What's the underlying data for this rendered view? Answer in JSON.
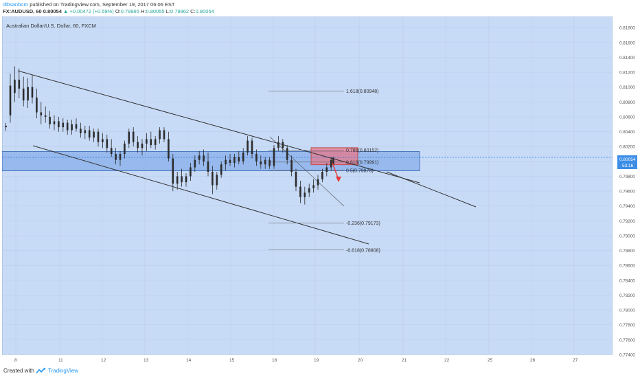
{
  "header": {
    "author": "dlbsanborn",
    "published": " published on TradingView.com, September 19, 2017 06:06 EST",
    "symbol": "FX:AUDUSD, 60",
    "last": "0.80054",
    "change": "▲ +0.00472 (+0.59%)",
    "ohlc": {
      "o_label": "O:",
      "o": "0.79965",
      "h_label": "H:",
      "h": "0.80055",
      "l_label": "L:",
      "l": "0.79962",
      "c_label": "C:",
      "c": "0.80054"
    }
  },
  "footer": {
    "created": "Created with",
    "brand": "TradingView",
    "brand_icon": "tradingview-logo-icon"
  },
  "colors": {
    "plot_bg": "#c7daf6",
    "candle": "#2b2b2b",
    "zone_blue": "#6f9ee6",
    "zone_red": "#e6788a",
    "arrow": "#e53935",
    "current_price_bg": "#3d8ee6"
  },
  "chart_data": {
    "type": "candlestick",
    "title": "Australian Dollar/U.S. Dollar, 60, FXCM",
    "x_ticks": [
      "8",
      "11",
      "12",
      "13",
      "14",
      "15",
      "18",
      "19",
      "20",
      "21",
      "22",
      "25",
      "26",
      "27"
    ],
    "y_ticks": [
      "0.81800",
      "0.81600",
      "0.81400",
      "0.81200",
      "0.81000",
      "0.80800",
      "0.80600",
      "0.80400",
      "0.80200",
      "0.80000",
      "0.79800",
      "0.79600",
      "0.79400",
      "0.79200",
      "0.79000",
      "0.78800",
      "0.78600",
      "0.78400",
      "0.78200",
      "0.78000",
      "0.77800",
      "0.77600",
      "0.77400"
    ],
    "ylim": [
      0.774,
      0.8195
    ],
    "current_price": "0.80054",
    "countdown": "53:16",
    "fib_levels": [
      {
        "label": "1.618(0.80948)",
        "value": 0.80948
      },
      {
        "label": "0.786(0.80152)",
        "value": 0.80152
      },
      {
        "label": "0.618(0.79991)",
        "value": 0.79991
      },
      {
        "label": "0.5(0.79878)",
        "value": 0.79878
      },
      {
        "label": "-0.236(0.79173)",
        "value": 0.79173
      },
      {
        "label": "-0.618(0.78808)",
        "value": 0.78808
      }
    ],
    "zones": [
      {
        "name": "support-resistance-zone",
        "top": 0.80132,
        "bottom": 0.79873
      },
      {
        "name": "sell-zone",
        "top": 0.80185,
        "bottom": 0.79955
      }
    ],
    "candles": [
      {
        "t": 0.5,
        "o": 0.8046,
        "h": 0.8052,
        "l": 0.8041,
        "c": 0.8048
      },
      {
        "t": 2.5,
        "o": 0.8062,
        "h": 0.8118,
        "l": 0.8052,
        "c": 0.8102
      },
      {
        "t": 4.5,
        "o": 0.8092,
        "h": 0.8128,
        "l": 0.808,
        "c": 0.811
      },
      {
        "t": 6.5,
        "o": 0.811,
        "h": 0.8125,
        "l": 0.8085,
        "c": 0.8098
      },
      {
        "t": 8.5,
        "o": 0.8098,
        "h": 0.8114,
        "l": 0.8074,
        "c": 0.8082
      },
      {
        "t": 10.5,
        "o": 0.8082,
        "h": 0.8112,
        "l": 0.8072,
        "c": 0.81
      },
      {
        "t": 12.5,
        "o": 0.81,
        "h": 0.8116,
        "l": 0.8078,
        "c": 0.8086
      },
      {
        "t": 14.5,
        "o": 0.8086,
        "h": 0.8098,
        "l": 0.8058,
        "c": 0.8066
      },
      {
        "t": 16.5,
        "o": 0.8066,
        "h": 0.808,
        "l": 0.805,
        "c": 0.8062
      },
      {
        "t": 18.5,
        "o": 0.8062,
        "h": 0.8074,
        "l": 0.8052,
        "c": 0.806
      },
      {
        "t": 20.5,
        "o": 0.806,
        "h": 0.8068,
        "l": 0.8044,
        "c": 0.805
      },
      {
        "t": 22.5,
        "o": 0.805,
        "h": 0.8062,
        "l": 0.8042,
        "c": 0.8054
      },
      {
        "t": 24.5,
        "o": 0.8054,
        "h": 0.806,
        "l": 0.804,
        "c": 0.8046
      },
      {
        "t": 26.5,
        "o": 0.8046,
        "h": 0.8058,
        "l": 0.804,
        "c": 0.8052
      },
      {
        "t": 28.5,
        "o": 0.8052,
        "h": 0.8056,
        "l": 0.8036,
        "c": 0.8042
      },
      {
        "t": 30.5,
        "o": 0.8042,
        "h": 0.8056,
        "l": 0.8036,
        "c": 0.805
      },
      {
        "t": 32.5,
        "o": 0.805,
        "h": 0.8058,
        "l": 0.804,
        "c": 0.8044
      },
      {
        "t": 34.5,
        "o": 0.8044,
        "h": 0.8052,
        "l": 0.8032,
        "c": 0.8038
      },
      {
        "t": 36.5,
        "o": 0.8038,
        "h": 0.8048,
        "l": 0.803,
        "c": 0.8042
      },
      {
        "t": 38.5,
        "o": 0.8042,
        "h": 0.8048,
        "l": 0.8028,
        "c": 0.8032
      },
      {
        "t": 40.5,
        "o": 0.8032,
        "h": 0.8044,
        "l": 0.8026,
        "c": 0.804
      },
      {
        "t": 42.5,
        "o": 0.804,
        "h": 0.8044,
        "l": 0.802,
        "c": 0.8026
      },
      {
        "t": 44.5,
        "o": 0.8026,
        "h": 0.8038,
        "l": 0.8018,
        "c": 0.803
      },
      {
        "t": 46.5,
        "o": 0.803,
        "h": 0.8036,
        "l": 0.8012,
        "c": 0.8018
      },
      {
        "t": 48.5,
        "o": 0.8018,
        "h": 0.803,
        "l": 0.8006,
        "c": 0.801
      },
      {
        "t": 50.5,
        "o": 0.801,
        "h": 0.8018,
        "l": 0.7996,
        "c": 0.8002
      },
      {
        "t": 52.5,
        "o": 0.8002,
        "h": 0.8014,
        "l": 0.7994,
        "c": 0.801
      },
      {
        "t": 54.5,
        "o": 0.801,
        "h": 0.8028,
        "l": 0.8004,
        "c": 0.8024
      },
      {
        "t": 56.5,
        "o": 0.8024,
        "h": 0.8044,
        "l": 0.8018,
        "c": 0.804
      },
      {
        "t": 58.5,
        "o": 0.804,
        "h": 0.8046,
        "l": 0.802,
        "c": 0.8026
      },
      {
        "t": 60.5,
        "o": 0.8026,
        "h": 0.8034,
        "l": 0.8012,
        "c": 0.8018
      },
      {
        "t": 62.5,
        "o": 0.8018,
        "h": 0.803,
        "l": 0.8008,
        "c": 0.8024
      },
      {
        "t": 64.5,
        "o": 0.8024,
        "h": 0.8038,
        "l": 0.8014,
        "c": 0.803
      },
      {
        "t": 66.5,
        "o": 0.803,
        "h": 0.804,
        "l": 0.8018,
        "c": 0.8022
      },
      {
        "t": 68.5,
        "o": 0.8022,
        "h": 0.8034,
        "l": 0.8016,
        "c": 0.803
      },
      {
        "t": 70.5,
        "o": 0.803,
        "h": 0.8046,
        "l": 0.8024,
        "c": 0.8042
      },
      {
        "t": 72.5,
        "o": 0.8042,
        "h": 0.8046,
        "l": 0.8026,
        "c": 0.803
      },
      {
        "t": 74.5,
        "o": 0.803,
        "h": 0.804,
        "l": 0.8,
        "c": 0.8004
      },
      {
        "t": 76.5,
        "o": 0.8004,
        "h": 0.801,
        "l": 0.796,
        "c": 0.797
      },
      {
        "t": 78.5,
        "o": 0.797,
        "h": 0.7986,
        "l": 0.7962,
        "c": 0.798
      },
      {
        "t": 80.5,
        "o": 0.798,
        "h": 0.799,
        "l": 0.7966,
        "c": 0.7972
      },
      {
        "t": 82.5,
        "o": 0.7972,
        "h": 0.7984,
        "l": 0.7966,
        "c": 0.798
      },
      {
        "t": 84.5,
        "o": 0.798,
        "h": 0.7998,
        "l": 0.7974,
        "c": 0.7992
      },
      {
        "t": 86.5,
        "o": 0.7992,
        "h": 0.8008,
        "l": 0.7986,
        "c": 0.8002
      },
      {
        "t": 88.5,
        "o": 0.8002,
        "h": 0.8014,
        "l": 0.7996,
        "c": 0.8008
      },
      {
        "t": 90.5,
        "o": 0.8008,
        "h": 0.8016,
        "l": 0.7994,
        "c": 0.8
      },
      {
        "t": 92.5,
        "o": 0.8,
        "h": 0.8012,
        "l": 0.798,
        "c": 0.7986
      },
      {
        "t": 94.5,
        "o": 0.7986,
        "h": 0.7994,
        "l": 0.7956,
        "c": 0.7968
      },
      {
        "t": 96.5,
        "o": 0.7968,
        "h": 0.7986,
        "l": 0.7962,
        "c": 0.7982
      },
      {
        "t": 98.5,
        "o": 0.7982,
        "h": 0.8,
        "l": 0.7978,
        "c": 0.7996
      },
      {
        "t": 100.5,
        "o": 0.7996,
        "h": 0.8008,
        "l": 0.7988,
        "c": 0.8002
      },
      {
        "t": 102.5,
        "o": 0.8002,
        "h": 0.801,
        "l": 0.7994,
        "c": 0.7998
      },
      {
        "t": 104.5,
        "o": 0.7998,
        "h": 0.801,
        "l": 0.7992,
        "c": 0.8006
      },
      {
        "t": 106.5,
        "o": 0.8006,
        "h": 0.8014,
        "l": 0.7996,
        "c": 0.8
      },
      {
        "t": 108.5,
        "o": 0.8,
        "h": 0.8018,
        "l": 0.7996,
        "c": 0.8012
      },
      {
        "t": 110.5,
        "o": 0.8012,
        "h": 0.8034,
        "l": 0.8008,
        "c": 0.8028
      },
      {
        "t": 112.5,
        "o": 0.8028,
        "h": 0.8032,
        "l": 0.8004,
        "c": 0.801
      },
      {
        "t": 114.5,
        "o": 0.801,
        "h": 0.8016,
        "l": 0.7994,
        "c": 0.8
      },
      {
        "t": 116.5,
        "o": 0.8,
        "h": 0.8008,
        "l": 0.799,
        "c": 0.7996
      },
      {
        "t": 118.5,
        "o": 0.7996,
        "h": 0.8006,
        "l": 0.799,
        "c": 0.8002
      },
      {
        "t": 120.5,
        "o": 0.8002,
        "h": 0.8006,
        "l": 0.799,
        "c": 0.7994
      },
      {
        "t": 122.5,
        "o": 0.7994,
        "h": 0.8022,
        "l": 0.799,
        "c": 0.8018
      },
      {
        "t": 124.5,
        "o": 0.8018,
        "h": 0.8034,
        "l": 0.8014,
        "c": 0.8026
      },
      {
        "t": 126.5,
        "o": 0.8026,
        "h": 0.803,
        "l": 0.8012,
        "c": 0.8018
      },
      {
        "t": 128.5,
        "o": 0.8018,
        "h": 0.8022,
        "l": 0.7996,
        "c": 0.8002
      },
      {
        "t": 130.5,
        "o": 0.8002,
        "h": 0.8008,
        "l": 0.798,
        "c": 0.7986
      },
      {
        "t": 132.5,
        "o": 0.7986,
        "h": 0.799,
        "l": 0.796,
        "c": 0.7966
      },
      {
        "t": 134.5,
        "o": 0.7966,
        "h": 0.7974,
        "l": 0.7944,
        "c": 0.7952
      },
      {
        "t": 136.5,
        "o": 0.7952,
        "h": 0.7966,
        "l": 0.7942,
        "c": 0.7958
      },
      {
        "t": 138.5,
        "o": 0.7958,
        "h": 0.797,
        "l": 0.7952,
        "c": 0.7964
      },
      {
        "t": 140.5,
        "o": 0.7964,
        "h": 0.7976,
        "l": 0.7958,
        "c": 0.7968
      },
      {
        "t": 142.5,
        "o": 0.7968,
        "h": 0.7982,
        "l": 0.7962,
        "c": 0.7976
      },
      {
        "t": 144.5,
        "o": 0.7976,
        "h": 0.799,
        "l": 0.7972,
        "c": 0.7986
      },
      {
        "t": 146.5,
        "o": 0.7986,
        "h": 0.7998,
        "l": 0.798,
        "c": 0.7992
      },
      {
        "t": 148.5,
        "o": 0.7992,
        "h": 0.8006,
        "l": 0.7988,
        "c": 0.8002
      },
      {
        "t": 149.5,
        "o": 0.7996,
        "h": 0.8006,
        "l": 0.7996,
        "c": 0.8005
      }
    ]
  }
}
